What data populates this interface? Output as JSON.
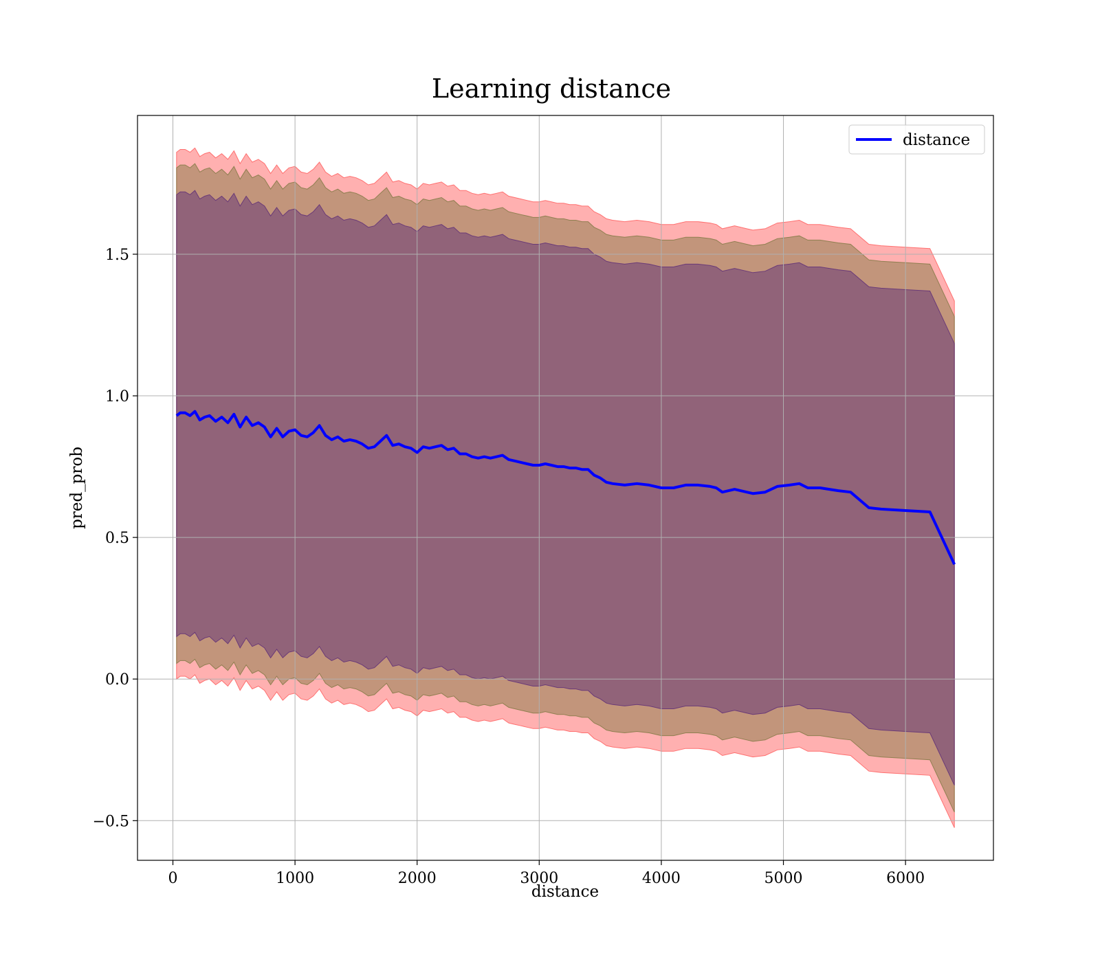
{
  "chart_data": {
    "type": "line",
    "title": "Learning distance",
    "xlabel": "distance",
    "ylabel": "pred_prob",
    "xlim": [
      -290,
      6720
    ],
    "ylim": [
      -0.64,
      1.99
    ],
    "xticks": [
      0,
      1000,
      2000,
      3000,
      4000,
      5000,
      6000
    ],
    "yticks": [
      -0.5,
      0.0,
      0.5,
      1.0,
      1.5
    ],
    "xtick_labels": [
      "0",
      "1000",
      "2000",
      "3000",
      "4000",
      "5000",
      "6000"
    ],
    "ytick_labels": [
      "−0.5",
      "0.0",
      "0.5",
      "1.0",
      "1.5"
    ],
    "grid": true,
    "legend": {
      "position": "top-right",
      "entries": [
        "distance"
      ]
    },
    "colors": {
      "line": "#0000ff",
      "band_outer": "#ff6f6f",
      "band_middle": "#8f7f50",
      "band_inner": "#6a3a78",
      "grid": "#b0b0b0"
    },
    "series": [
      {
        "name": "distance",
        "x": [
          30,
          60,
          100,
          140,
          180,
          220,
          260,
          300,
          350,
          400,
          450,
          500,
          550,
          600,
          650,
          700,
          750,
          800,
          850,
          900,
          950,
          1000,
          1050,
          1100,
          1150,
          1200,
          1250,
          1300,
          1350,
          1400,
          1450,
          1500,
          1550,
          1600,
          1650,
          1700,
          1750,
          1800,
          1850,
          1900,
          1950,
          2000,
          2050,
          2100,
          2150,
          2200,
          2250,
          2300,
          2350,
          2400,
          2450,
          2500,
          2550,
          2600,
          2650,
          2700,
          2750,
          2800,
          2850,
          2900,
          2950,
          3000,
          3050,
          3100,
          3150,
          3200,
          3250,
          3300,
          3350,
          3400,
          3450,
          3500,
          3550,
          3600,
          3700,
          3800,
          3900,
          4000,
          4050,
          4100,
          4200,
          4300,
          4400,
          4450,
          4500,
          4600,
          4700,
          4750,
          4850,
          4950,
          5050,
          5130,
          5200,
          5300,
          5450,
          5550,
          5700,
          5800,
          6000,
          6200,
          6400
        ],
        "mean": [
          0.93,
          0.94,
          0.94,
          0.93,
          0.945,
          0.915,
          0.925,
          0.93,
          0.91,
          0.925,
          0.905,
          0.935,
          0.89,
          0.925,
          0.895,
          0.905,
          0.89,
          0.855,
          0.885,
          0.855,
          0.875,
          0.88,
          0.86,
          0.855,
          0.87,
          0.895,
          0.86,
          0.845,
          0.855,
          0.84,
          0.845,
          0.84,
          0.83,
          0.815,
          0.82,
          0.84,
          0.86,
          0.825,
          0.83,
          0.82,
          0.815,
          0.8,
          0.82,
          0.815,
          0.82,
          0.825,
          0.81,
          0.815,
          0.795,
          0.795,
          0.785,
          0.78,
          0.785,
          0.78,
          0.785,
          0.79,
          0.775,
          0.77,
          0.765,
          0.76,
          0.755,
          0.755,
          0.76,
          0.755,
          0.75,
          0.75,
          0.745,
          0.745,
          0.74,
          0.74,
          0.72,
          0.71,
          0.695,
          0.69,
          0.685,
          0.69,
          0.685,
          0.675,
          0.675,
          0.675,
          0.685,
          0.685,
          0.68,
          0.675,
          0.66,
          0.67,
          0.66,
          0.655,
          0.66,
          0.68,
          0.685,
          0.69,
          0.675,
          0.675,
          0.665,
          0.66,
          0.605,
          0.6,
          0.595,
          0.59,
          0.405
        ],
        "band_inner_half_width": 0.78,
        "band_middle_half_width": 0.875,
        "band_outer_half_width": 0.93
      }
    ]
  }
}
